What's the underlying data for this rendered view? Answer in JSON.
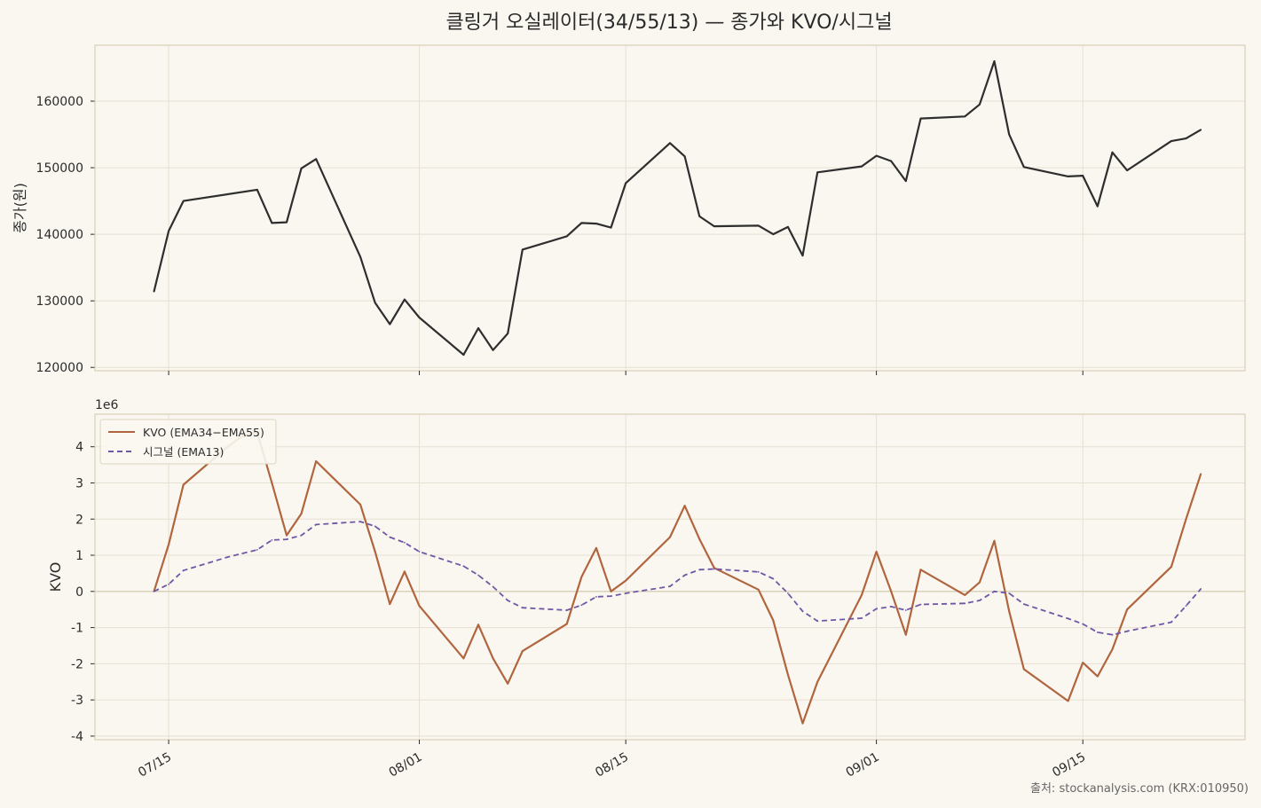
{
  "chart_data": {
    "title": "클링거 오실레이터(34/55/13) — 종가와 KVO/시그널",
    "source": "출처: stockanalysis.com (KRX:010950)",
    "x_tick_labels": [
      "07/15",
      "08/01",
      "08/15",
      "09/01",
      "09/15"
    ],
    "x_tick_dates": [
      "2025-07-15",
      "2025-08-01",
      "2025-08-15",
      "2025-09-01",
      "2025-09-15"
    ],
    "x_range": [
      "2025-07-10",
      "2025-09-26"
    ],
    "colors": {
      "background": "#faf7f0",
      "close": "#2e2e2e",
      "kvo": "#b0653e",
      "signal": "#7057a6",
      "grid": "#e6e0d2",
      "frame": "#d8cfb8"
    },
    "panels": [
      {
        "type": "line",
        "ylabel": "종가(원)",
        "ylim": [
          119500,
          168400
        ],
        "yticks": [
          120000,
          130000,
          140000,
          150000,
          160000
        ],
        "series": [
          {
            "key": "close",
            "style": "solid",
            "points": [
              [
                "2025-07-14",
                131400
              ],
              [
                "2025-07-15",
                140500
              ],
              [
                "2025-07-16",
                145000
              ],
              [
                "2025-07-21",
                146700
              ],
              [
                "2025-07-22",
                141700
              ],
              [
                "2025-07-23",
                141800
              ],
              [
                "2025-07-24",
                149900
              ],
              [
                "2025-07-25",
                151300
              ],
              [
                "2025-07-28",
                136600
              ],
              [
                "2025-07-29",
                129700
              ],
              [
                "2025-07-30",
                126500
              ],
              [
                "2025-07-31",
                130200
              ],
              [
                "2025-08-01",
                127500
              ],
              [
                "2025-08-04",
                121900
              ],
              [
                "2025-08-05",
                125900
              ],
              [
                "2025-08-06",
                122600
              ],
              [
                "2025-08-07",
                125100
              ],
              [
                "2025-08-08",
                137700
              ],
              [
                "2025-08-11",
                139700
              ],
              [
                "2025-08-12",
                141700
              ],
              [
                "2025-08-13",
                141600
              ],
              [
                "2025-08-14",
                141000
              ],
              [
                "2025-08-15",
                147700
              ],
              [
                "2025-08-18",
                153700
              ],
              [
                "2025-08-19",
                151700
              ],
              [
                "2025-08-20",
                142700
              ],
              [
                "2025-08-21",
                141200
              ],
              [
                "2025-08-24",
                141300
              ],
              [
                "2025-08-25",
                140000
              ],
              [
                "2025-08-26",
                141100
              ],
              [
                "2025-08-27",
                136800
              ],
              [
                "2025-08-28",
                149300
              ],
              [
                "2025-08-31",
                150200
              ],
              [
                "2025-09-01",
                151800
              ],
              [
                "2025-09-02",
                151000
              ],
              [
                "2025-09-03",
                148000
              ],
              [
                "2025-09-04",
                157400
              ],
              [
                "2025-09-07",
                157700
              ],
              [
                "2025-09-08",
                159500
              ],
              [
                "2025-09-09",
                166000
              ],
              [
                "2025-09-10",
                155000
              ],
              [
                "2025-09-11",
                150100
              ],
              [
                "2025-09-14",
                148700
              ],
              [
                "2025-09-15",
                148800
              ],
              [
                "2025-09-16",
                144200
              ],
              [
                "2025-09-17",
                152300
              ],
              [
                "2025-09-18",
                149600
              ],
              [
                "2025-09-21",
                154000
              ],
              [
                "2025-09-22",
                154400
              ],
              [
                "2025-09-23",
                155700
              ]
            ]
          }
        ]
      },
      {
        "type": "line",
        "ylabel": "KVO",
        "scale_label": "1e6",
        "ylim": [
          -4.1,
          4.9
        ],
        "yticks": [
          -4,
          -3,
          -2,
          -1,
          0,
          1,
          2,
          3,
          4
        ],
        "zero_line": true,
        "legend": {
          "position": "top-left",
          "entries": [
            {
              "key": "kvo",
              "label": "KVO (EMA34−EMA55)",
              "style": "solid"
            },
            {
              "key": "signal",
              "label": "시그널 (EMA13)",
              "style": "dashed"
            }
          ]
        },
        "series": [
          {
            "key": "kvo",
            "name": "KVO (EMA34−EMA55)",
            "style": "solid",
            "points": [
              [
                "2025-07-14",
                0.0
              ],
              [
                "2025-07-15",
                1.3
              ],
              [
                "2025-07-16",
                2.95
              ],
              [
                "2025-07-19",
                4.0
              ],
              [
                "2025-07-20",
                4.3
              ],
              [
                "2025-07-21",
                4.4
              ],
              [
                "2025-07-22",
                3.0
              ],
              [
                "2025-07-23",
                1.55
              ],
              [
                "2025-07-24",
                2.15
              ],
              [
                "2025-07-25",
                3.6
              ],
              [
                "2025-07-28",
                2.4
              ],
              [
                "2025-07-29",
                1.1
              ],
              [
                "2025-07-30",
                -0.35
              ],
              [
                "2025-07-31",
                0.55
              ],
              [
                "2025-08-01",
                -0.4
              ],
              [
                "2025-08-04",
                -1.85
              ],
              [
                "2025-08-05",
                -0.92
              ],
              [
                "2025-08-06",
                -1.85
              ],
              [
                "2025-08-07",
                -2.55
              ],
              [
                "2025-08-08",
                -1.65
              ],
              [
                "2025-08-11",
                -0.9
              ],
              [
                "2025-08-12",
                0.4
              ],
              [
                "2025-08-13",
                1.2
              ],
              [
                "2025-08-14",
                0.0
              ],
              [
                "2025-08-15",
                0.3
              ],
              [
                "2025-08-18",
                1.5
              ],
              [
                "2025-08-19",
                2.37
              ],
              [
                "2025-08-20",
                1.45
              ],
              [
                "2025-08-21",
                0.65
              ],
              [
                "2025-08-24",
                0.05
              ],
              [
                "2025-08-25",
                -0.8
              ],
              [
                "2025-08-26",
                -2.3
              ],
              [
                "2025-08-27",
                -3.65
              ],
              [
                "2025-08-28",
                -2.5
              ],
              [
                "2025-08-31",
                -0.1
              ],
              [
                "2025-09-01",
                1.1
              ],
              [
                "2025-09-02",
                0.0
              ],
              [
                "2025-09-03",
                -1.2
              ],
              [
                "2025-09-04",
                0.6
              ],
              [
                "2025-09-07",
                -0.1
              ],
              [
                "2025-09-08",
                0.25
              ],
              [
                "2025-09-09",
                1.4
              ],
              [
                "2025-09-10",
                -0.55
              ],
              [
                "2025-09-11",
                -2.15
              ],
              [
                "2025-09-14",
                -3.03
              ],
              [
                "2025-09-15",
                -1.97
              ],
              [
                "2025-09-16",
                -2.35
              ],
              [
                "2025-09-17",
                -1.6
              ],
              [
                "2025-09-18",
                -0.5
              ],
              [
                "2025-09-21",
                0.68
              ],
              [
                "2025-09-22",
                2.0
              ],
              [
                "2025-09-23",
                3.25
              ]
            ]
          },
          {
            "key": "signal",
            "name": "시그널 (EMA13)",
            "style": "dashed",
            "points": [
              [
                "2025-07-14",
                0.0
              ],
              [
                "2025-07-15",
                0.2
              ],
              [
                "2025-07-16",
                0.58
              ],
              [
                "2025-07-19",
                0.95
              ],
              [
                "2025-07-20",
                1.05
              ],
              [
                "2025-07-21",
                1.15
              ],
              [
                "2025-07-22",
                1.42
              ],
              [
                "2025-07-23",
                1.44
              ],
              [
                "2025-07-24",
                1.55
              ],
              [
                "2025-07-25",
                1.85
              ],
              [
                "2025-07-28",
                1.93
              ],
              [
                "2025-07-29",
                1.8
              ],
              [
                "2025-07-30",
                1.5
              ],
              [
                "2025-07-31",
                1.35
              ],
              [
                "2025-08-01",
                1.1
              ],
              [
                "2025-08-04",
                0.7
              ],
              [
                "2025-08-05",
                0.45
              ],
              [
                "2025-08-06",
                0.13
              ],
              [
                "2025-08-07",
                -0.25
              ],
              [
                "2025-08-08",
                -0.45
              ],
              [
                "2025-08-11",
                -0.52
              ],
              [
                "2025-08-12",
                -0.38
              ],
              [
                "2025-08-13",
                -0.15
              ],
              [
                "2025-08-14",
                -0.13
              ],
              [
                "2025-08-15",
                -0.05
              ],
              [
                "2025-08-18",
                0.14
              ],
              [
                "2025-08-19",
                0.45
              ],
              [
                "2025-08-20",
                0.6
              ],
              [
                "2025-08-21",
                0.62
              ],
              [
                "2025-08-24",
                0.54
              ],
              [
                "2025-08-25",
                0.35
              ],
              [
                "2025-08-26",
                -0.05
              ],
              [
                "2025-08-27",
                -0.55
              ],
              [
                "2025-08-28",
                -0.82
              ],
              [
                "2025-08-31",
                -0.74
              ],
              [
                "2025-09-01",
                -0.48
              ],
              [
                "2025-09-02",
                -0.42
              ],
              [
                "2025-09-03",
                -0.52
              ],
              [
                "2025-09-04",
                -0.36
              ],
              [
                "2025-09-07",
                -0.33
              ],
              [
                "2025-09-08",
                -0.25
              ],
              [
                "2025-09-09",
                0.0
              ],
              [
                "2025-09-10",
                -0.05
              ],
              [
                "2025-09-11",
                -0.35
              ],
              [
                "2025-09-14",
                -0.75
              ],
              [
                "2025-09-15",
                -0.9
              ],
              [
                "2025-09-16",
                -1.13
              ],
              [
                "2025-09-17",
                -1.2
              ],
              [
                "2025-09-18",
                -1.1
              ],
              [
                "2025-09-21",
                -0.85
              ],
              [
                "2025-09-22",
                -0.4
              ],
              [
                "2025-09-23",
                0.07
              ]
            ]
          }
        ]
      }
    ]
  }
}
